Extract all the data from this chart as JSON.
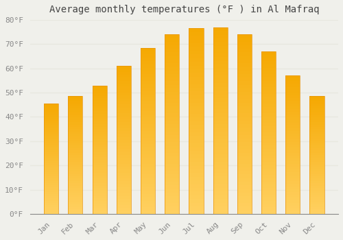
{
  "title": "Average monthly temperatures (°F ) in Al Mafraq",
  "months": [
    "Jan",
    "Feb",
    "Mar",
    "Apr",
    "May",
    "Jun",
    "Jul",
    "Aug",
    "Sep",
    "Oct",
    "Nov",
    "Dec"
  ],
  "values": [
    45.5,
    48.5,
    53.0,
    61.0,
    68.5,
    74.0,
    76.5,
    77.0,
    74.0,
    67.0,
    57.0,
    48.5
  ],
  "bar_color_bottom": "#FFD060",
  "bar_color_top": "#F5A800",
  "ylim": [
    0,
    80
  ],
  "yticks": [
    0,
    10,
    20,
    30,
    40,
    50,
    60,
    70,
    80
  ],
  "ytick_labels": [
    "0°F",
    "10°F",
    "20°F",
    "30°F",
    "40°F",
    "50°F",
    "60°F",
    "70°F",
    "80°F"
  ],
  "bg_color": "#f0f0eb",
  "grid_color": "#e8e8e0",
  "bar_edge_color": "#e8940a",
  "title_fontsize": 10,
  "tick_fontsize": 8,
  "bar_width": 0.6
}
